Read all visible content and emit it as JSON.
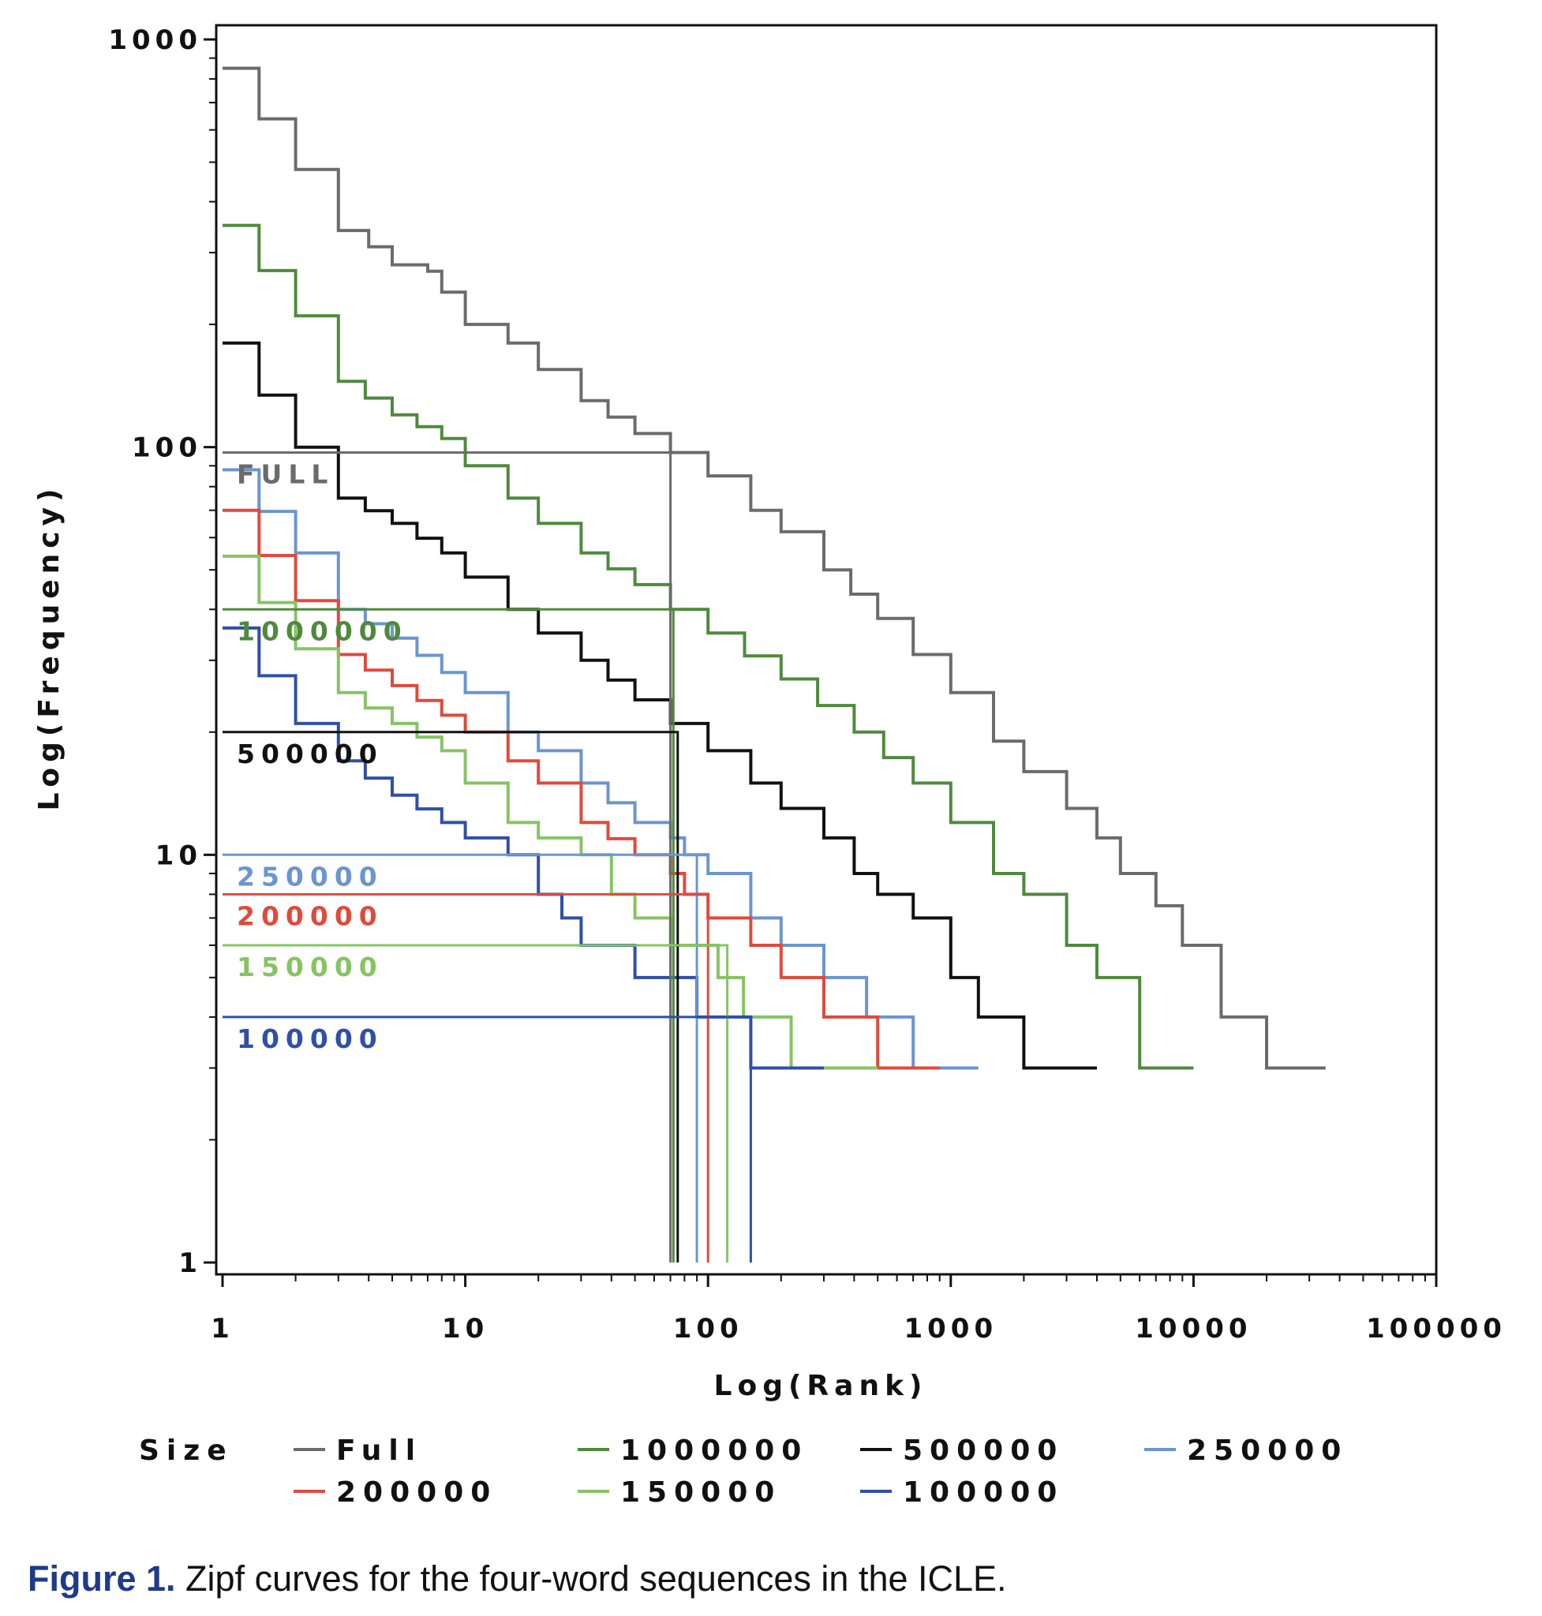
{
  "chart_data": {
    "type": "line",
    "title": "",
    "xlabel": "Log(Rank)",
    "ylabel": "Log(Frequency)",
    "xscale": "log",
    "yscale": "log",
    "xlim": [
      1,
      100000
    ],
    "ylim": [
      1,
      1000
    ],
    "grid": false,
    "x_ticks": [
      "1",
      "10",
      "100",
      "1000",
      "10000",
      "100000"
    ],
    "y_ticks": [
      "1",
      "10",
      "100",
      "1000"
    ],
    "legend": {
      "position": "bottom",
      "title": "Size",
      "entries": [
        "Full",
        "1000000",
        "500000",
        "250000",
        "200000",
        "150000",
        "100000"
      ]
    },
    "series": [
      {
        "name": "Full",
        "color": "#6b6b6b",
        "points": [
          [
            1,
            850
          ],
          [
            2,
            480
          ],
          [
            3,
            340
          ],
          [
            4,
            310
          ],
          [
            5,
            280
          ],
          [
            7,
            270
          ],
          [
            8,
            240
          ],
          [
            10,
            200
          ],
          [
            15,
            180
          ],
          [
            20,
            155
          ],
          [
            30,
            130
          ],
          [
            50,
            108
          ],
          [
            70,
            97
          ],
          [
            100,
            85
          ],
          [
            150,
            70
          ],
          [
            200,
            62
          ],
          [
            300,
            50
          ],
          [
            500,
            38
          ],
          [
            700,
            31
          ],
          [
            1000,
            25
          ],
          [
            1500,
            19
          ],
          [
            2000,
            16
          ],
          [
            3000,
            13
          ],
          [
            4000,
            11
          ],
          [
            5000,
            9
          ],
          [
            7000,
            7.5
          ],
          [
            9000,
            6
          ],
          [
            10000,
            6
          ],
          [
            13000,
            5
          ],
          [
            13000,
            4
          ],
          [
            20000,
            4
          ],
          [
            20000,
            3
          ],
          [
            35000,
            3
          ]
        ],
        "reference": {
          "label": "FULL",
          "rank": 70,
          "frequency": 97
        }
      },
      {
        "name": "1000000",
        "color": "#4f8a3c",
        "points": [
          [
            1,
            350
          ],
          [
            2,
            210
          ],
          [
            3,
            145
          ],
          [
            5,
            120
          ],
          [
            8,
            105
          ],
          [
            10,
            90
          ],
          [
            15,
            75
          ],
          [
            20,
            65
          ],
          [
            30,
            55
          ],
          [
            50,
            46
          ],
          [
            70,
            40
          ],
          [
            100,
            35
          ],
          [
            200,
            27
          ],
          [
            400,
            20
          ],
          [
            700,
            15
          ],
          [
            1000,
            12
          ],
          [
            1500,
            9
          ],
          [
            2000,
            8
          ],
          [
            3000,
            6
          ],
          [
            4000,
            5
          ],
          [
            6000,
            4
          ],
          [
            6000,
            3
          ],
          [
            10000,
            3
          ]
        ],
        "reference": {
          "label": "1000000",
          "rank": 72,
          "frequency": 40
        }
      },
      {
        "name": "500000",
        "color": "#111111",
        "points": [
          [
            1,
            180
          ],
          [
            2,
            100
          ],
          [
            3,
            75
          ],
          [
            5,
            65
          ],
          [
            8,
            55
          ],
          [
            10,
            48
          ],
          [
            15,
            40
          ],
          [
            20,
            35
          ],
          [
            30,
            30
          ],
          [
            50,
            24
          ],
          [
            70,
            21
          ],
          [
            100,
            18
          ],
          [
            150,
            15
          ],
          [
            200,
            13
          ],
          [
            300,
            11
          ],
          [
            400,
            9
          ],
          [
            500,
            8
          ],
          [
            700,
            7
          ],
          [
            1000,
            6
          ],
          [
            1000,
            5
          ],
          [
            1300,
            5
          ],
          [
            1300,
            4
          ],
          [
            2000,
            4
          ],
          [
            2000,
            3
          ],
          [
            4000,
            3
          ]
        ],
        "reference": {
          "label": "500000",
          "rank": 75,
          "frequency": 20
        }
      },
      {
        "name": "250000",
        "color": "#6b95d0",
        "points": [
          [
            1,
            88
          ],
          [
            2,
            55
          ],
          [
            3,
            40
          ],
          [
            5,
            34
          ],
          [
            8,
            28
          ],
          [
            10,
            25
          ],
          [
            15,
            20
          ],
          [
            20,
            18
          ],
          [
            30,
            15
          ],
          [
            50,
            12
          ],
          [
            70,
            11
          ],
          [
            80,
            10
          ],
          [
            100,
            9
          ],
          [
            150,
            8
          ],
          [
            150,
            7
          ],
          [
            200,
            7
          ],
          [
            200,
            6
          ],
          [
            300,
            6
          ],
          [
            300,
            5
          ],
          [
            400,
            5
          ],
          [
            450,
            4
          ],
          [
            700,
            4
          ],
          [
            700,
            3
          ],
          [
            1300,
            3
          ]
        ],
        "reference": {
          "label": "250000",
          "rank": 90,
          "frequency": 10
        }
      },
      {
        "name": "200000",
        "color": "#e04a3c",
        "points": [
          [
            1,
            70
          ],
          [
            2,
            42
          ],
          [
            3,
            31
          ],
          [
            5,
            26
          ],
          [
            8,
            22
          ],
          [
            10,
            20
          ],
          [
            15,
            17
          ],
          [
            20,
            15
          ],
          [
            30,
            12
          ],
          [
            50,
            10
          ],
          [
            70,
            9
          ],
          [
            80,
            8
          ],
          [
            100,
            8
          ],
          [
            100,
            7
          ],
          [
            150,
            7
          ],
          [
            150,
            6
          ],
          [
            200,
            6
          ],
          [
            200,
            5
          ],
          [
            300,
            5
          ],
          [
            300,
            4
          ],
          [
            500,
            4
          ],
          [
            500,
            3
          ],
          [
            900,
            3
          ]
        ],
        "reference": {
          "label": "200000",
          "rank": 100,
          "frequency": 8
        }
      },
      {
        "name": "150000",
        "color": "#86c463",
        "points": [
          [
            1,
            54
          ],
          [
            2,
            32
          ],
          [
            3,
            25
          ],
          [
            5,
            21
          ],
          [
            8,
            18
          ],
          [
            10,
            15
          ],
          [
            15,
            12
          ],
          [
            20,
            11
          ],
          [
            30,
            10
          ],
          [
            40,
            8
          ],
          [
            50,
            7
          ],
          [
            70,
            6
          ],
          [
            110,
            6
          ],
          [
            110,
            5
          ],
          [
            140,
            5
          ],
          [
            140,
            4
          ],
          [
            220,
            4
          ],
          [
            220,
            3
          ],
          [
            500,
            3
          ]
        ],
        "reference": {
          "label": "150000",
          "rank": 120,
          "frequency": 6
        }
      },
      {
        "name": "100000",
        "color": "#2f4fa8",
        "points": [
          [
            1,
            36
          ],
          [
            2,
            21
          ],
          [
            3,
            17
          ],
          [
            5,
            14
          ],
          [
            8,
            12
          ],
          [
            10,
            11
          ],
          [
            15,
            10
          ],
          [
            20,
            8
          ],
          [
            25,
            7
          ],
          [
            30,
            6
          ],
          [
            50,
            6
          ],
          [
            50,
            5
          ],
          [
            70,
            5
          ],
          [
            90,
            4
          ],
          [
            150,
            4
          ],
          [
            150,
            3
          ],
          [
            300,
            3
          ]
        ],
        "reference": {
          "label": "100000",
          "rank": 150,
          "frequency": 4
        }
      }
    ]
  },
  "caption": {
    "label": "Figure 1.",
    "text": " Zipf curves for the four-word sequences in the ICLE."
  }
}
